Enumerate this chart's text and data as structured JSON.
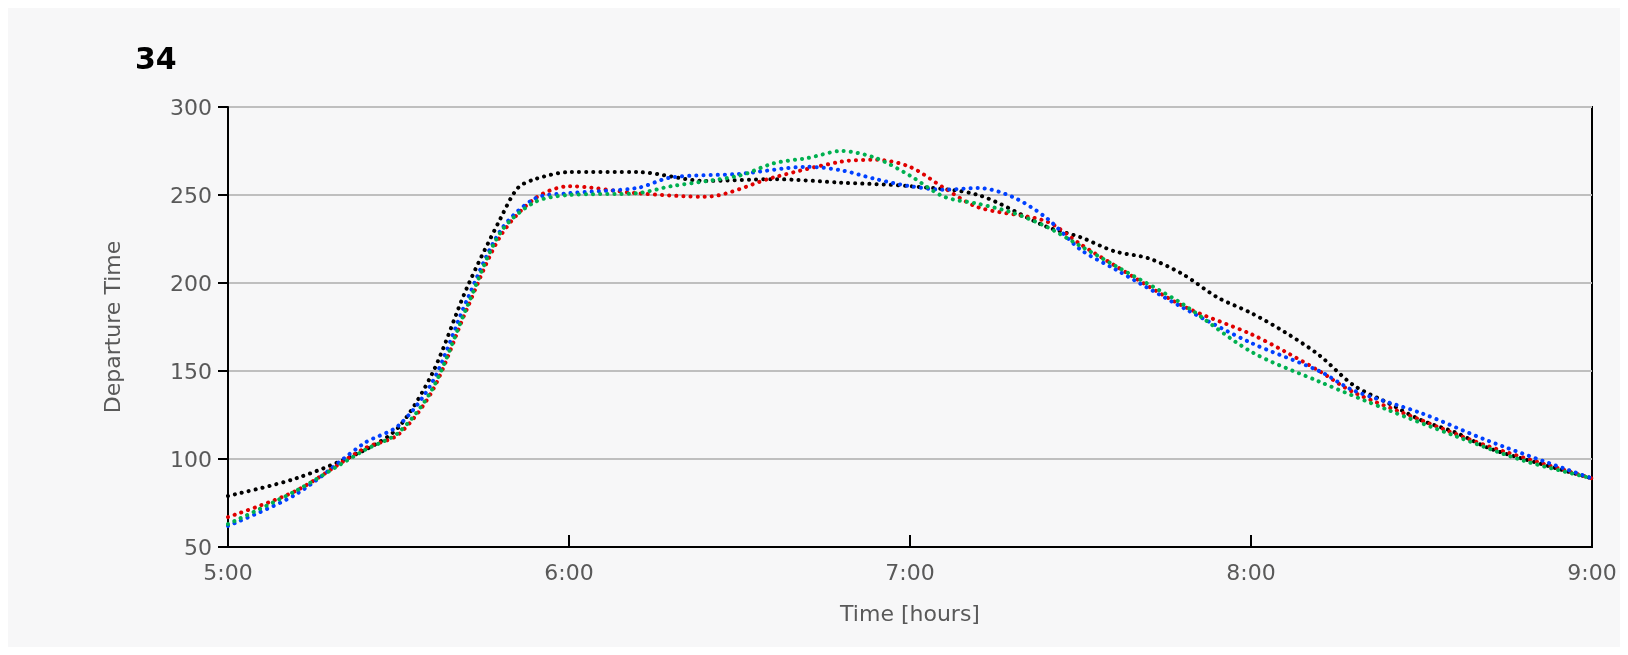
{
  "chart_data": {
    "type": "line",
    "title": "34",
    "xlabel": "Time [hours]",
    "ylabel": "Departure Time",
    "xlim": [
      5,
      9
    ],
    "xticks": [
      {
        "value": 5,
        "label": "5:00"
      },
      {
        "value": 6,
        "label": "6:00"
      },
      {
        "value": 7,
        "label": "7:00"
      },
      {
        "value": 8,
        "label": "8:00"
      },
      {
        "value": 9,
        "label": "9:00"
      }
    ],
    "ylim": [
      50,
      300
    ],
    "yticks": [
      50,
      100,
      150,
      200,
      250,
      300
    ],
    "grid": "y",
    "marker": "none",
    "line_style": "dotted",
    "series": [
      {
        "color": "#000000",
        "x": [
          5,
          5.2,
          5.4,
          5.5,
          5.6,
          5.7,
          5.8,
          5.85,
          5.9,
          6,
          6.2,
          6.4,
          6.6,
          6.8,
          7,
          7.2,
          7.4,
          7.5,
          7.6,
          7.7,
          7.8,
          7.9,
          8,
          8.1,
          8.2,
          8.3,
          8.4,
          8.5,
          8.6,
          8.7,
          8.8,
          9
        ],
        "values": [
          79,
          89,
          105,
          118,
          149,
          197,
          237,
          254,
          259,
          263,
          263,
          258,
          259,
          257,
          255,
          250,
          232,
          226,
          218,
          214,
          205,
          192,
          183,
          172,
          159,
          142,
          132,
          122,
          115,
          106,
          100,
          89
        ]
      },
      {
        "color": "#e00000",
        "x": [
          5,
          5.2,
          5.4,
          5.5,
          5.6,
          5.7,
          5.8,
          5.9,
          6,
          6.2,
          6.4,
          6.6,
          6.8,
          6.9,
          7,
          7.1,
          7.2,
          7.4,
          7.5,
          7.6,
          7.8,
          8,
          8.1,
          8.2,
          8.3,
          8.5,
          8.7,
          9
        ],
        "values": [
          67,
          82,
          106,
          114,
          139,
          185,
          227,
          248,
          255,
          251,
          249,
          260,
          269,
          270,
          266,
          254,
          243,
          235,
          222,
          210,
          187,
          171,
          161,
          150,
          138,
          122,
          107,
          89
        ]
      },
      {
        "color": "#0040ff",
        "x": [
          5,
          5.2,
          5.4,
          5.5,
          5.6,
          5.7,
          5.8,
          5.9,
          6,
          6.2,
          6.3,
          6.5,
          6.7,
          6.8,
          6.9,
          7,
          7.1,
          7.2,
          7.3,
          7.4,
          7.5,
          7.6,
          7.8,
          8,
          8.2,
          8.3,
          8.5,
          8.7,
          9
        ],
        "values": [
          62,
          80,
          109,
          119,
          144,
          190,
          230,
          248,
          251,
          254,
          260,
          262,
          266,
          264,
          259,
          255,
          253,
          254,
          249,
          237,
          219,
          208,
          186,
          166,
          150,
          139,
          126,
          110,
          89
        ]
      },
      {
        "color": "#00b050",
        "x": [
          5,
          5.2,
          5.4,
          5.5,
          5.6,
          5.7,
          5.8,
          5.9,
          6,
          6.2,
          6.3,
          6.5,
          6.6,
          6.7,
          6.8,
          6.9,
          7,
          7.1,
          7.2,
          7.3,
          7.4,
          7.5,
          7.6,
          7.8,
          8,
          8.2,
          8.4,
          8.6,
          8.8,
          9
        ],
        "values": [
          63,
          82,
          105,
          115,
          140,
          186,
          229,
          246,
          250,
          251,
          255,
          261,
          268,
          271,
          275,
          271,
          261,
          249,
          245,
          240,
          232,
          221,
          210,
          188,
          161,
          144,
          128,
          113,
          99,
          89
        ]
      }
    ]
  }
}
